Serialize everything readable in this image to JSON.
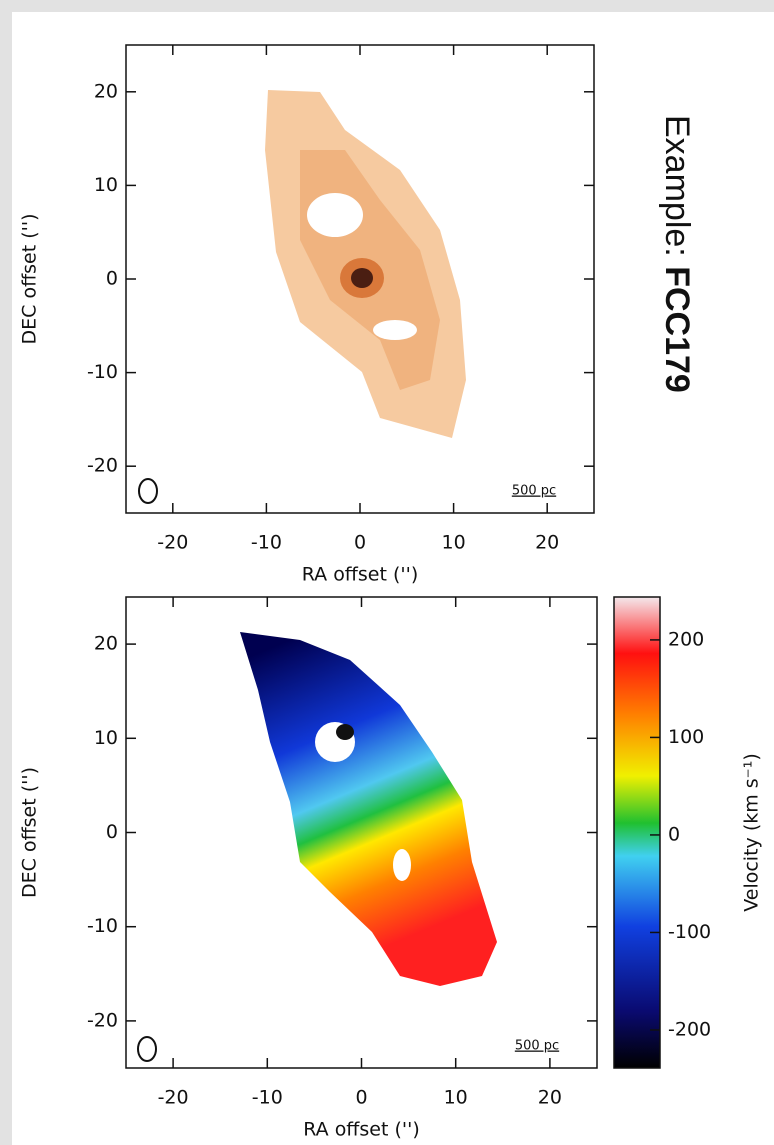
{
  "annotation": {
    "prefix": "Example:",
    "name": "FCC179"
  },
  "chart_data": [
    {
      "type": "image",
      "xlabel": "RA offset ('')",
      "ylabel": "DEC offset ('')",
      "xlim": [
        -25,
        25
      ],
      "ylim": [
        -25,
        25
      ],
      "xticks": [
        -20,
        -10,
        0,
        10,
        20
      ],
      "yticks": [
        -20,
        -10,
        0,
        10,
        20
      ],
      "scalebar_label": "500 pc"
    },
    {
      "type": "image",
      "xlabel": "RA offset ('')",
      "ylabel": "DEC offset ('')",
      "xlim": [
        -25,
        25
      ],
      "ylim": [
        -25,
        25
      ],
      "xticks": [
        -20,
        -10,
        0,
        10,
        20
      ],
      "yticks": [
        -20,
        -10,
        0,
        10,
        20
      ],
      "scalebar_label": "500 pc",
      "colorbar": {
        "label": "Velocity (km s⁻¹)",
        "lim": [
          -239,
          244
        ],
        "ticks": [
          -200,
          -100,
          0,
          100,
          200
        ]
      }
    }
  ]
}
